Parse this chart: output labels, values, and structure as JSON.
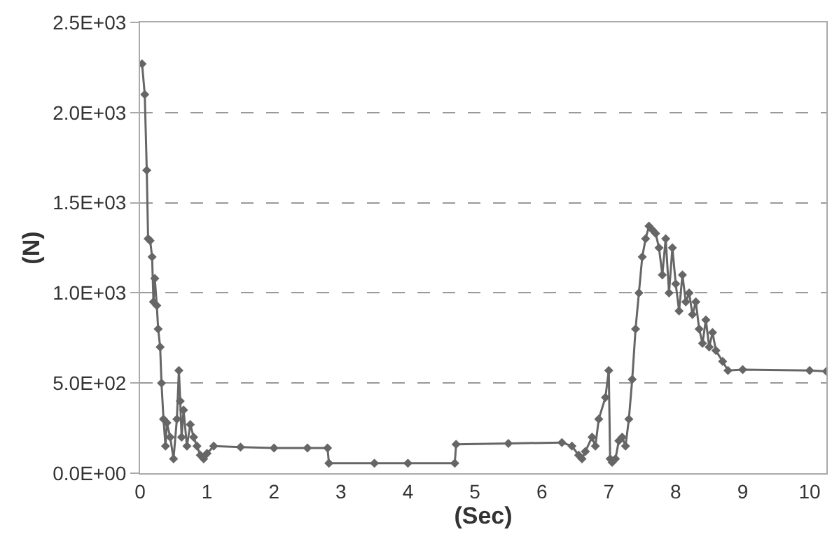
{
  "chart_data": {
    "type": "line",
    "xlabel": "(Sec)",
    "ylabel": "(N)",
    "series": [
      {
        "color": "#666666",
        "x": [
          0.03,
          0.07,
          0.1,
          0.12,
          0.15,
          0.18,
          0.2,
          0.22,
          0.25,
          0.27,
          0.3,
          0.32,
          0.35,
          0.38,
          0.4,
          0.45,
          0.5,
          0.55,
          0.58,
          0.6,
          0.62,
          0.65,
          0.7,
          0.75,
          0.8,
          0.85,
          0.9,
          0.95,
          1.0,
          1.1,
          1.5,
          2.0,
          2.5,
          2.8,
          2.82,
          3.5,
          4.0,
          4.7,
          4.72,
          5.5,
          6.3,
          6.45,
          6.55,
          6.6,
          6.65,
          6.75,
          6.8,
          6.85,
          6.95,
          7.0,
          7.02,
          7.05,
          7.1,
          7.15,
          7.2,
          7.25,
          7.3,
          7.35,
          7.4,
          7.45,
          7.5,
          7.55,
          7.6,
          7.65,
          7.7,
          7.75,
          7.8,
          7.85,
          7.9,
          7.95,
          8.0,
          8.05,
          8.1,
          8.15,
          8.2,
          8.25,
          8.3,
          8.35,
          8.4,
          8.45,
          8.5,
          8.55,
          8.6,
          8.7,
          8.78,
          9.0,
          10.0,
          10.25
        ],
        "values": [
          2270,
          2100,
          1680,
          1300,
          1290,
          1200,
          950,
          1080,
          930,
          800,
          700,
          500,
          300,
          150,
          280,
          200,
          80,
          300,
          570,
          400,
          200,
          350,
          150,
          270,
          200,
          150,
          100,
          80,
          110,
          150,
          145,
          140,
          140,
          140,
          55,
          55,
          55,
          55,
          160,
          165,
          170,
          150,
          100,
          80,
          120,
          200,
          150,
          300,
          420,
          570,
          80,
          60,
          80,
          180,
          200,
          150,
          300,
          520,
          800,
          1000,
          1200,
          1300,
          1370,
          1350,
          1330,
          1250,
          1100,
          1300,
          1000,
          1250,
          1050,
          900,
          1100,
          950,
          1000,
          880,
          950,
          800,
          720,
          850,
          700,
          780,
          680,
          620,
          570,
          575,
          570,
          565
        ]
      }
    ],
    "xlim": [
      0,
      10.25
    ],
    "xticks": [
      0,
      1,
      2,
      3,
      4,
      5,
      6,
      7,
      8,
      9,
      10
    ],
    "ylim": [
      0,
      2500
    ],
    "yticks": [
      {
        "value": 0,
        "label": "0.0E+00"
      },
      {
        "value": 500,
        "label": "5.0E+02"
      },
      {
        "value": 1000,
        "label": "1.0E+03"
      },
      {
        "value": 1500,
        "label": "1.5E+03"
      },
      {
        "value": 2000,
        "label": "2.0E+03"
      },
      {
        "value": 2500,
        "label": "2.5E+03"
      }
    ],
    "grid": "y",
    "marker": "diamond",
    "line_style": "solid"
  }
}
